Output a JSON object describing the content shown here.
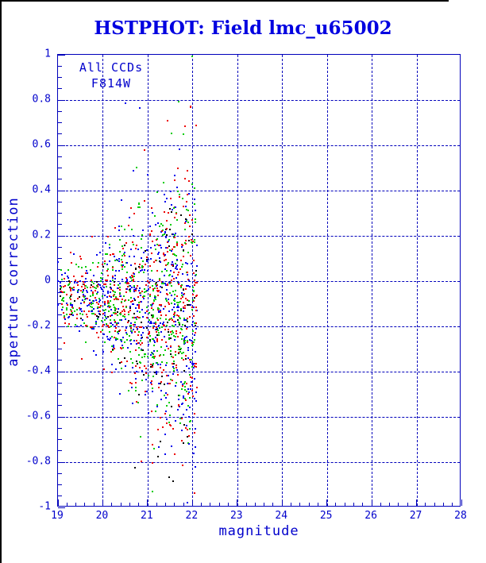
{
  "window": {
    "background": "#ffffff",
    "border_color": "#000000"
  },
  "title": {
    "text": "HSTPHOT: Field lmc_u65002",
    "color": "#0000e0"
  },
  "plot": {
    "frame_color": "#0000bb",
    "grid_color": "#0000bb",
    "label_color": "#0000cc",
    "annotation": {
      "line1": "All CCDs",
      "line2": "F814W"
    }
  },
  "chart_data": {
    "type": "scatter",
    "title": "HSTPHOT: Field lmc_u65002",
    "xlabel": "magnitude",
    "ylabel": "aperture correction",
    "xlim": [
      19,
      28
    ],
    "ylim": [
      -1,
      1
    ],
    "x_major_step": 1,
    "x_minor_step": 0.2,
    "y_major_step": 0.2,
    "y_minor_step": 0.05,
    "x_tick_labels": [
      "19",
      "20",
      "21",
      "22",
      "23",
      "24",
      "25",
      "26",
      "27",
      "28"
    ],
    "y_tick_labels": [
      "1",
      "0.8",
      "0.6",
      "0.4",
      "0.2",
      "0",
      "-0.2",
      "-0.4",
      "-0.6",
      "-0.8",
      "-1"
    ],
    "grid": "dashed lines on major ticks, both axes",
    "legend": "none",
    "series": [
      {
        "name": "ccd-points-red",
        "color": "#ee0000",
        "weight": 0.31
      },
      {
        "name": "ccd-points-green",
        "color": "#00cc00",
        "weight": 0.31
      },
      {
        "name": "ccd-points-blue",
        "color": "#0000ee",
        "weight": 0.3
      },
      {
        "name": "ccd-points-black",
        "color": "#000000",
        "weight": 0.08
      }
    ],
    "points_spec": {
      "description": "approx. 1500 stars spanning magnitude 19 to 22.1; aperture correction clustered near -0.1 at bright magnitudes, spread widening to the full -1..+1 range by magnitude 22; sharp cutoff past magnitude 22",
      "seed": 7,
      "n": 1500,
      "mag_min": 19.0,
      "mag_max": 22.1,
      "uniform_frac": 0.3,
      "center_base": -0.06,
      "center_slope": -0.03,
      "sigma_base": 0.07,
      "sigma_scale": 0.28,
      "sigma_power": 1.6,
      "halo_frac": 0.1,
      "halo_mult": 2.2,
      "point_size": 2
    }
  }
}
